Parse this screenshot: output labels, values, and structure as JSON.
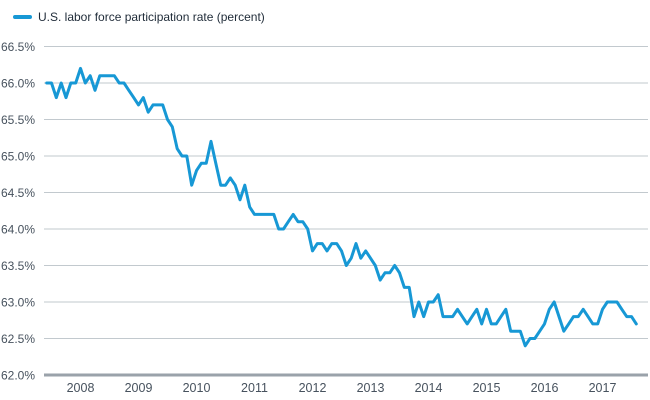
{
  "legend": {
    "label": "U.S. labor force participation rate (percent)"
  },
  "colors": {
    "line": "#1798d5",
    "grid": "#c2c9ce",
    "axis": "#9aa2aa",
    "tick_text": "#47525e",
    "legend_text": "#1f2b38",
    "background": "#ffffff"
  },
  "chart_data": {
    "type": "line",
    "title": "U.S. labor force participation rate (percent)",
    "xlabel": "",
    "ylabel": "",
    "x_unit": "month",
    "x_range": [
      "2007-06",
      "2017-08"
    ],
    "frequency": "monthly",
    "ylim": [
      62.0,
      66.5
    ],
    "grid": "horizontal",
    "legend_position": "top-left",
    "ytick_values": [
      66.5,
      66.0,
      65.5,
      65.0,
      64.5,
      64.0,
      63.5,
      63.0,
      62.5,
      62.0
    ],
    "ytick_labels": [
      "66.5%",
      "66.0%",
      "65.5%",
      "65.0%",
      "64.5%",
      "64.0%",
      "63.5%",
      "63.0%",
      "62.5%",
      "62.0%"
    ],
    "xtick_labels": [
      "2008",
      "2009",
      "2010",
      "2011",
      "2012",
      "2013",
      "2014",
      "2015",
      "2016",
      "2017"
    ],
    "series": [
      {
        "name": "U.S. labor force participation rate (percent)",
        "start_month": "2007-06",
        "values": [
          66.0,
          66.0,
          65.8,
          66.0,
          65.8,
          66.0,
          66.0,
          66.2,
          66.0,
          66.1,
          65.9,
          66.1,
          66.1,
          66.1,
          66.1,
          66.0,
          66.0,
          65.9,
          65.8,
          65.7,
          65.8,
          65.6,
          65.7,
          65.7,
          65.7,
          65.5,
          65.4,
          65.1,
          65.0,
          65.0,
          64.6,
          64.8,
          64.9,
          64.9,
          65.2,
          64.9,
          64.6,
          64.6,
          64.7,
          64.6,
          64.4,
          64.6,
          64.3,
          64.2,
          64.2,
          64.2,
          64.2,
          64.2,
          64.0,
          64.0,
          64.1,
          64.2,
          64.1,
          64.1,
          64.0,
          63.7,
          63.8,
          63.8,
          63.7,
          63.8,
          63.8,
          63.7,
          63.5,
          63.6,
          63.8,
          63.6,
          63.7,
          63.6,
          63.5,
          63.3,
          63.4,
          63.4,
          63.5,
          63.4,
          63.2,
          63.2,
          62.8,
          63.0,
          62.8,
          63.0,
          63.0,
          63.1,
          62.8,
          62.8,
          62.8,
          62.9,
          62.8,
          62.7,
          62.8,
          62.9,
          62.7,
          62.9,
          62.7,
          62.7,
          62.8,
          62.9,
          62.6,
          62.6,
          62.6,
          62.4,
          62.5,
          62.5,
          62.6,
          62.7,
          62.9,
          63.0,
          62.8,
          62.6,
          62.7,
          62.8,
          62.8,
          62.9,
          62.8,
          62.7,
          62.7,
          62.9,
          63.0,
          63.0,
          63.0,
          62.9,
          62.8,
          62.8,
          62.7
        ]
      }
    ]
  }
}
